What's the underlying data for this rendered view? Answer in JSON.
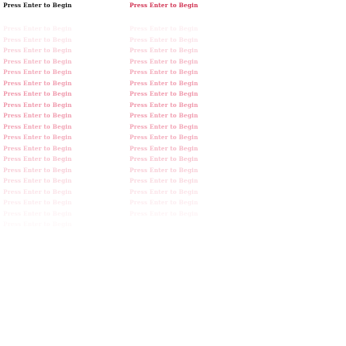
{
  "prompt": {
    "text": "Press Enter to Begin"
  },
  "colors": {
    "primary_left": "#111111",
    "primary_right": "#d03050",
    "echo": "#e8607e"
  },
  "trail": {
    "left": [
      {
        "text": "Press Enter to Begin",
        "opacity": 0.1
      },
      {
        "text": "Press Enter to Begin",
        "opacity": 0.18
      },
      {
        "text": "Press Enter to Begin",
        "opacity": 0.3
      },
      {
        "text": "Press Enter to Begin",
        "opacity": 0.45
      },
      {
        "text": "Press Enter to Begin",
        "opacity": 0.55
      },
      {
        "text": "Press Enter to Begin",
        "opacity": 0.62
      },
      {
        "text": "Press Enter to Begin",
        "opacity": 0.66
      },
      {
        "text": "Press Enter to Begin",
        "opacity": 0.66
      },
      {
        "text": "Press Enter to Begin",
        "opacity": 0.62
      },
      {
        "text": "Press Enter to Begin",
        "opacity": 0.58
      },
      {
        "text": "Press Enter to Begin",
        "opacity": 0.52
      },
      {
        "text": "Press Enter to Begin",
        "opacity": 0.45
      },
      {
        "text": "Press Enter to Begin",
        "opacity": 0.38
      },
      {
        "text": "Press Enter to Begin",
        "opacity": 0.3
      },
      {
        "text": "Press Enter to Begin",
        "opacity": 0.23
      },
      {
        "text": "Press Enter to Begin",
        "opacity": 0.17
      },
      {
        "text": "Press Enter to Begin",
        "opacity": 0.11
      },
      {
        "text": "Press Enter to Begin",
        "opacity": 0.07
      },
      {
        "text": "Press Enter to Begin",
        "opacity": 0.04
      }
    ],
    "right": [
      {
        "text": "Press Enter to Begin",
        "opacity": 0.1
      },
      {
        "text": "Press Enter to Begin",
        "opacity": 0.18
      },
      {
        "text": "Press Enter to Begin",
        "opacity": 0.3
      },
      {
        "text": "Press Enter to Begin",
        "opacity": 0.45
      },
      {
        "text": "Press Enter to Begin",
        "opacity": 0.55
      },
      {
        "text": "Press Enter to Begin",
        "opacity": 0.62
      },
      {
        "text": "Press Enter to Begin",
        "opacity": 0.66
      },
      {
        "text": "Press Enter to Begin",
        "opacity": 0.66
      },
      {
        "text": "Press Enter to Begin",
        "opacity": 0.62
      },
      {
        "text": "Press Enter to Begin",
        "opacity": 0.58
      },
      {
        "text": "Press Enter to Begin",
        "opacity": 0.52
      },
      {
        "text": "Press Enter to Begin",
        "opacity": 0.45
      },
      {
        "text": "Press Enter to Begin",
        "opacity": 0.38
      },
      {
        "text": "Press Enter to Begin",
        "opacity": 0.3
      },
      {
        "text": "Press Enter to Begin",
        "opacity": 0.23
      },
      {
        "text": "Press Enter to Begin",
        "opacity": 0.17
      },
      {
        "text": "Press Enter to Begin",
        "opacity": 0.11
      },
      {
        "text": "Press Enter to Begin",
        "opacity": 0.07
      }
    ]
  }
}
